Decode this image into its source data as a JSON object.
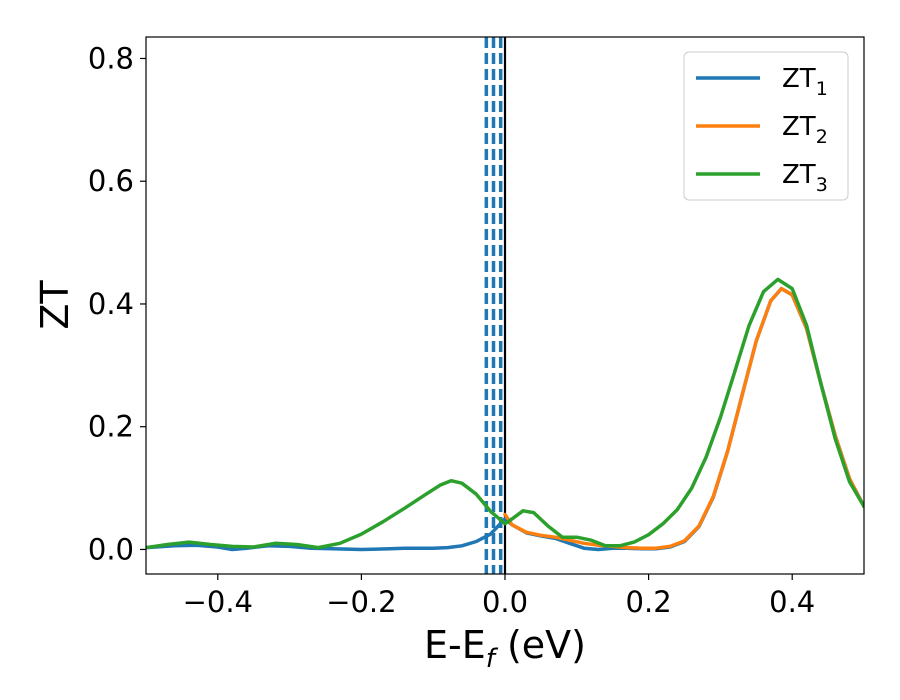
{
  "chart_data": {
    "type": "line",
    "xlim": [
      -0.5,
      0.5
    ],
    "ylim": [
      -0.04,
      0.835
    ],
    "xticks": [
      -0.4,
      -0.2,
      0.0,
      0.2,
      0.4
    ],
    "xtick_labels": [
      "−0.4",
      "−0.2",
      "0.0",
      "0.2",
      "0.4"
    ],
    "yticks": [
      0.0,
      0.2,
      0.4,
      0.6,
      0.8
    ],
    "ytick_labels": [
      "0.0",
      "0.2",
      "0.4",
      "0.6",
      "0.8"
    ],
    "xlabel": {
      "main": "E-E",
      "sub": "f",
      "tail": " (eV)"
    },
    "ylabel": "ZT",
    "grid": false,
    "legend_position": "top-right",
    "vertical_lines": [
      {
        "x": -0.026,
        "color": "#1f77b4",
        "style": "dashed"
      },
      {
        "x": -0.016,
        "color": "#1f77b4",
        "style": "dashed"
      },
      {
        "x": -0.006,
        "color": "#1f77b4",
        "style": "dashed"
      },
      {
        "x": 0.0,
        "color": "#000000",
        "style": "solid"
      }
    ],
    "series": [
      {
        "name": "ZT",
        "sub": "1",
        "color": "#1f77b4",
        "points": [
          [
            -0.5,
            0.003
          ],
          [
            -0.46,
            0.006
          ],
          [
            -0.43,
            0.007
          ],
          [
            -0.4,
            0.004
          ],
          [
            -0.38,
            0.0
          ],
          [
            -0.36,
            0.002
          ],
          [
            -0.33,
            0.006
          ],
          [
            -0.3,
            0.005
          ],
          [
            -0.27,
            0.002
          ],
          [
            -0.24,
            0.001
          ],
          [
            -0.2,
            0.0
          ],
          [
            -0.16,
            0.001
          ],
          [
            -0.14,
            0.002
          ],
          [
            -0.12,
            0.002
          ],
          [
            -0.1,
            0.002
          ],
          [
            -0.08,
            0.003
          ],
          [
            -0.06,
            0.006
          ],
          [
            -0.04,
            0.013
          ],
          [
            -0.02,
            0.025
          ],
          [
            0.0,
            0.05
          ],
          [
            0.01,
            0.04
          ],
          [
            0.03,
            0.027
          ],
          [
            0.05,
            0.022
          ],
          [
            0.07,
            0.018
          ],
          [
            0.09,
            0.01
          ],
          [
            0.11,
            0.002
          ],
          [
            0.13,
            0.0
          ],
          [
            0.15,
            0.002
          ],
          [
            0.17,
            0.002
          ],
          [
            0.19,
            0.001
          ],
          [
            0.21,
            0.001
          ],
          [
            0.23,
            0.004
          ],
          [
            0.25,
            0.013
          ],
          [
            0.27,
            0.037
          ],
          [
            0.29,
            0.085
          ],
          [
            0.31,
            0.16
          ],
          [
            0.33,
            0.25
          ],
          [
            0.35,
            0.34
          ],
          [
            0.37,
            0.405
          ],
          [
            0.385,
            0.425
          ],
          [
            0.4,
            0.415
          ],
          [
            0.42,
            0.36
          ],
          [
            0.44,
            0.27
          ],
          [
            0.46,
            0.185
          ],
          [
            0.48,
            0.115
          ],
          [
            0.5,
            0.07
          ]
        ]
      },
      {
        "name": "ZT",
        "sub": "2",
        "color": "#ff7f0e",
        "points": [
          [
            0.0,
            0.057
          ],
          [
            0.01,
            0.04
          ],
          [
            0.03,
            0.028
          ],
          [
            0.05,
            0.023
          ],
          [
            0.07,
            0.02
          ],
          [
            0.09,
            0.015
          ],
          [
            0.11,
            0.01
          ],
          [
            0.13,
            0.007
          ],
          [
            0.15,
            0.005
          ],
          [
            0.17,
            0.003
          ],
          [
            0.19,
            0.002
          ],
          [
            0.21,
            0.002
          ],
          [
            0.23,
            0.005
          ],
          [
            0.25,
            0.014
          ],
          [
            0.27,
            0.038
          ],
          [
            0.29,
            0.086
          ],
          [
            0.31,
            0.16
          ],
          [
            0.33,
            0.25
          ],
          [
            0.35,
            0.34
          ],
          [
            0.37,
            0.405
          ],
          [
            0.385,
            0.425
          ],
          [
            0.4,
            0.415
          ],
          [
            0.42,
            0.36
          ],
          [
            0.44,
            0.27
          ],
          [
            0.46,
            0.185
          ],
          [
            0.48,
            0.115
          ],
          [
            0.5,
            0.07
          ]
        ]
      },
      {
        "name": "ZT",
        "sub": "3",
        "color": "#2ca02c",
        "points": [
          [
            -0.5,
            0.003
          ],
          [
            -0.47,
            0.008
          ],
          [
            -0.44,
            0.012
          ],
          [
            -0.41,
            0.008
          ],
          [
            -0.38,
            0.005
          ],
          [
            -0.35,
            0.004
          ],
          [
            -0.32,
            0.01
          ],
          [
            -0.29,
            0.008
          ],
          [
            -0.26,
            0.003
          ],
          [
            -0.23,
            0.01
          ],
          [
            -0.2,
            0.025
          ],
          [
            -0.17,
            0.045
          ],
          [
            -0.14,
            0.067
          ],
          [
            -0.11,
            0.09
          ],
          [
            -0.09,
            0.105
          ],
          [
            -0.075,
            0.112
          ],
          [
            -0.06,
            0.108
          ],
          [
            -0.04,
            0.09
          ],
          [
            -0.02,
            0.062
          ],
          [
            0.0,
            0.042
          ],
          [
            0.01,
            0.05
          ],
          [
            0.025,
            0.063
          ],
          [
            0.04,
            0.06
          ],
          [
            0.06,
            0.038
          ],
          [
            0.08,
            0.02
          ],
          [
            0.1,
            0.02
          ],
          [
            0.12,
            0.015
          ],
          [
            0.14,
            0.006
          ],
          [
            0.16,
            0.006
          ],
          [
            0.18,
            0.012
          ],
          [
            0.2,
            0.024
          ],
          [
            0.22,
            0.042
          ],
          [
            0.24,
            0.065
          ],
          [
            0.26,
            0.1
          ],
          [
            0.28,
            0.15
          ],
          [
            0.3,
            0.215
          ],
          [
            0.32,
            0.29
          ],
          [
            0.34,
            0.365
          ],
          [
            0.36,
            0.42
          ],
          [
            0.38,
            0.44
          ],
          [
            0.4,
            0.425
          ],
          [
            0.42,
            0.365
          ],
          [
            0.44,
            0.27
          ],
          [
            0.46,
            0.18
          ],
          [
            0.48,
            0.11
          ],
          [
            0.5,
            0.07
          ]
        ]
      }
    ]
  }
}
